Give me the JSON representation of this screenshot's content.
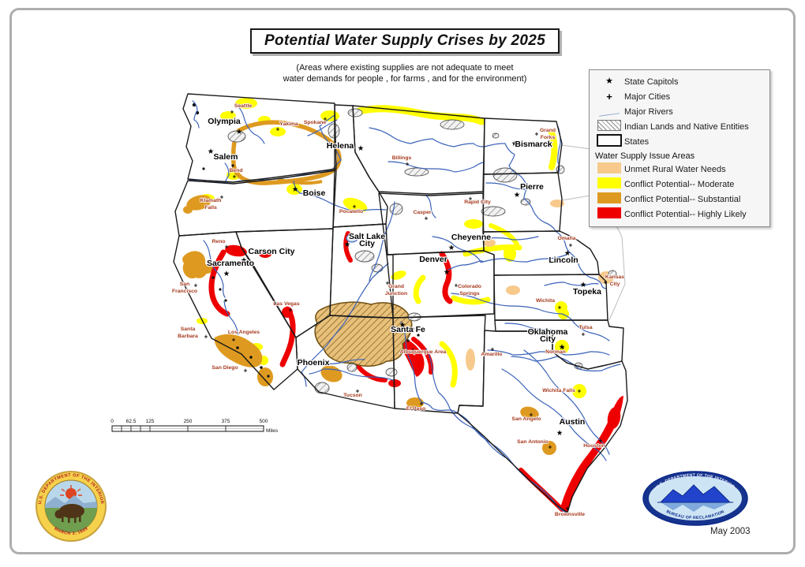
{
  "title": {
    "text": "Potential Water Supply Crises by 2025",
    "subtitle_lines": [
      "(Areas where existing supplies are not adequate to meet",
      "water demands for people , for farms , and for the environment)"
    ]
  },
  "legend": {
    "symbols": [
      {
        "icon": "star",
        "label": "State Capitols"
      },
      {
        "icon": "plus",
        "label": "Major Cities"
      },
      {
        "icon": "river-line",
        "label": "Major Rivers"
      },
      {
        "icon": "hatched-area",
        "label": "Indian Lands and Native Entities"
      },
      {
        "icon": "state-outline",
        "label": "States"
      }
    ],
    "section_title": "Water Supply Issue Areas",
    "issue_areas": [
      {
        "label": "Unmet Rural Water Needs",
        "color": "#F7CA8C"
      },
      {
        "label": "Conflict Potential-- Moderate",
        "color": "#FFFF00"
      },
      {
        "label": "Conflict Potential-- Substantial",
        "color": "#DE9A20"
      },
      {
        "label": "Conflict Potential-- Highly Likely",
        "color": "#EE0000"
      }
    ]
  },
  "scale_bar": {
    "tick_labels": [
      "0",
      "62.5",
      "125",
      "250",
      "375",
      "500"
    ],
    "unit_label": "Miles"
  },
  "seals": {
    "interior": {
      "ring_top": "U.S. DEPARTMENT OF THE INTERIOR",
      "ring_bottom": "MARCH 3, 1849"
    },
    "reclamation": {
      "ring_top": "U.S. DEPARTMENT OF THE INTERIOR",
      "ring_bottom": "BUREAU OF RECLAMATION"
    }
  },
  "footer": {
    "date_label": "May 2003"
  },
  "colors": {
    "river": "#3a62b8",
    "state_border": "#1a1a1a",
    "city_label": "#a63a1e",
    "unmet_rural": "#F7CA8C",
    "moderate": "#FFFF00",
    "substantial": "#DE9A20",
    "highly_likely": "#EE0000"
  },
  "map": {
    "state_capitals": [
      {
        "name": "Olympia",
        "label": [
          284,
          157
        ],
        "marker": [
          303,
          167
        ]
      },
      {
        "name": "Salem",
        "label": [
          286,
          202
        ],
        "marker": [
          267,
          192
        ]
      },
      {
        "name": "Boise",
        "label": [
          398,
          248
        ],
        "marker": [
          374,
          240
        ]
      },
      {
        "name": "Helena",
        "label": [
          431,
          188
        ],
        "marker": [
          457,
          188
        ]
      },
      {
        "name": "Bismarck",
        "label": [
          676,
          186
        ],
        "marker": [
          652,
          182
        ]
      },
      {
        "name": "Pierre",
        "label": [
          674,
          240
        ],
        "marker": [
          655,
          247
        ]
      },
      {
        "name": "Cheyenne",
        "label": [
          597,
          304
        ],
        "marker": [
          572,
          314
        ]
      },
      {
        "name": "Salt Lake\nCity",
        "label": [
          465,
          303
        ],
        "marker": [
          440,
          310
        ]
      },
      {
        "name": "Carson City",
        "label": [
          344,
          322
        ],
        "marker": [
          309,
          330
        ]
      },
      {
        "name": "Sacramento",
        "label": [
          292,
          337
        ],
        "marker": [
          287,
          347
        ]
      },
      {
        "name": "Denver",
        "label": [
          549,
          332
        ],
        "marker": [
          566,
          345
        ]
      },
      {
        "name": "Lincoln",
        "label": [
          714,
          333
        ],
        "marker": [
          719,
          321
        ]
      },
      {
        "name": "Topeka",
        "label": [
          744,
          373
        ],
        "marker": [
          739,
          361
        ]
      },
      {
        "name": "Santa Fe",
        "label": [
          517,
          421
        ],
        "marker": [
          510,
          412
        ]
      },
      {
        "name": "Phoenix",
        "label": [
          397,
          463
        ],
        "marker": [
          382,
          458
        ]
      },
      {
        "name": "Oklahoma\nCity",
        "label": [
          694,
          424
        ],
        "marker": [
          712,
          440
        ]
      },
      {
        "name": "Austin",
        "label": [
          725,
          538
        ],
        "marker": [
          709,
          549
        ]
      }
    ],
    "major_cities": [
      {
        "name": "Seattle",
        "label": [
          308,
          136
        ],
        "marker": [
          294,
          142
        ]
      },
      {
        "name": "Spokane",
        "label": [
          399,
          157
        ],
        "marker": [
          412,
          151
        ]
      },
      {
        "name": "Yakima",
        "label": [
          366,
          159
        ],
        "marker": [
          352,
          164
        ]
      },
      {
        "name": "Bend",
        "label": [
          299,
          218
        ],
        "marker": [
          297,
          224
        ]
      },
      {
        "name": "Klamath\nFalls",
        "label": [
          267,
          256
        ],
        "marker": [
          281,
          250
        ]
      },
      {
        "name": "Pocatello",
        "label": [
          445,
          270
        ],
        "marker": [
          449,
          262
        ]
      },
      {
        "name": "Billings",
        "label": [
          509,
          202
        ],
        "marker": [
          516,
          208
        ]
      },
      {
        "name": "Casper",
        "label": [
          535,
          271
        ],
        "marker": [
          540,
          277
        ]
      },
      {
        "name": "Rapid City",
        "label": [
          605,
          258
        ],
        "marker": [
          596,
          252
        ]
      },
      {
        "name": "Grand\nForks",
        "label": [
          694,
          167
        ],
        "marker": [
          680,
          170
        ]
      },
      {
        "name": "Omaha",
        "label": [
          718,
          304
        ],
        "marker": [
          723,
          311
        ]
      },
      {
        "name": "Kansas\nCity",
        "label": [
          779,
          353
        ],
        "marker": [
          767,
          358
        ]
      },
      {
        "name": "Wichita",
        "label": [
          691,
          383
        ],
        "marker": [
          709,
          390
        ]
      },
      {
        "name": "Tulsa",
        "label": [
          742,
          417
        ],
        "marker": [
          739,
          424
        ]
      },
      {
        "name": "Norman",
        "label": [
          704,
          448
        ],
        "marker": [
          713,
          441
        ]
      },
      {
        "name": "Amarillo",
        "label": [
          623,
          451
        ],
        "marker": [
          624,
          443
        ]
      },
      {
        "name": "Wichita Falls",
        "label": [
          708,
          497
        ],
        "marker": [
          734,
          496
        ]
      },
      {
        "name": "Reno",
        "label": [
          277,
          308
        ],
        "marker": [
          287,
          313
        ]
      },
      {
        "name": "San\nFrancisco",
        "label": [
          234,
          362
        ],
        "marker": [
          248,
          362
        ]
      },
      {
        "name": "Santa\nBarbara",
        "label": [
          238,
          419
        ],
        "marker": [
          261,
          427
        ]
      },
      {
        "name": "Los Angeles",
        "label": [
          309,
          423
        ],
        "marker": [
          296,
          431
        ]
      },
      {
        "name": "San Diego",
        "label": [
          285,
          468
        ],
        "marker": [
          311,
          470
        ]
      },
      {
        "name": "Las Vegas",
        "label": [
          363,
          387
        ],
        "marker": [
          368,
          393
        ]
      },
      {
        "name": "Grand\nJunction",
        "label": [
          502,
          365
        ],
        "marker": [
          491,
          359
        ]
      },
      {
        "name": "Colorado\nSprings",
        "label": [
          595,
          365
        ],
        "marker": [
          578,
          362
        ]
      },
      {
        "name": "Albuquerque Area",
        "label": [
          536,
          448
        ],
        "marker": [
          523,
          444
        ]
      },
      {
        "name": "Tucson",
        "label": [
          447,
          503
        ],
        "marker": [
          453,
          496
        ]
      },
      {
        "name": "El Paso",
        "label": [
          527,
          520
        ],
        "marker": [
          534,
          512
        ]
      },
      {
        "name": "San Angelo",
        "label": [
          667,
          533
        ],
        "marker": [
          673,
          526
        ]
      },
      {
        "name": "San Antonio",
        "label": [
          675,
          562
        ],
        "marker": [
          697,
          567
        ]
      },
      {
        "name": "Houston",
        "label": [
          753,
          567
        ],
        "marker": [
          761,
          559
        ]
      },
      {
        "name": "Brownsville",
        "label": [
          722,
          654
        ],
        "marker": [
          719,
          645
        ]
      }
    ]
  }
}
